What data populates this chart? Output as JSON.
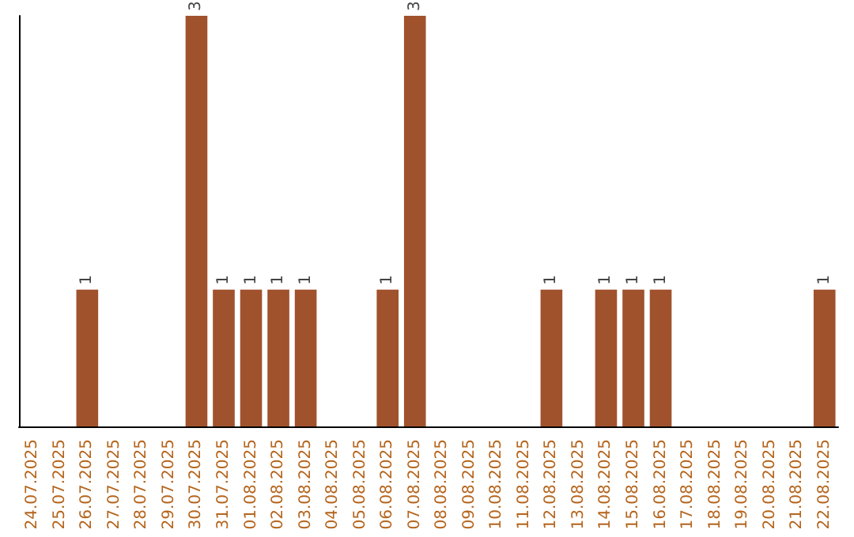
{
  "chart_data": {
    "type": "bar",
    "categories": [
      "24.07.2025",
      "25.07.2025",
      "26.07.2025",
      "27.07.2025",
      "28.07.2025",
      "29.07.2025",
      "30.07.2025",
      "31.07.2025",
      "01.08.2025",
      "02.08.2025",
      "03.08.2025",
      "04.08.2025",
      "05.08.2025",
      "06.08.2025",
      "07.08.2025",
      "08.08.2025",
      "09.08.2025",
      "10.08.2025",
      "11.08.2025",
      "12.08.2025",
      "13.08.2025",
      "14.08.2025",
      "15.08.2025",
      "16.08.2025",
      "17.08.2025",
      "18.08.2025",
      "19.08.2025",
      "20.08.2025",
      "21.08.2025",
      "22.08.2025"
    ],
    "values": [
      0,
      0,
      1,
      0,
      0,
      0,
      3,
      1,
      1,
      1,
      1,
      0,
      0,
      1,
      3,
      0,
      0,
      0,
      0,
      1,
      0,
      1,
      1,
      1,
      0,
      0,
      0,
      0,
      0,
      1
    ],
    "value_labels": [
      null,
      null,
      "1",
      null,
      null,
      null,
      "3",
      "1",
      "1",
      "1",
      "1",
      null,
      null,
      "1",
      "3",
      null,
      null,
      null,
      null,
      "1",
      null,
      "1",
      "1",
      "1",
      null,
      null,
      null,
      null,
      null,
      "1"
    ],
    "color": "#a0522d",
    "tick_labels": "x"
  }
}
